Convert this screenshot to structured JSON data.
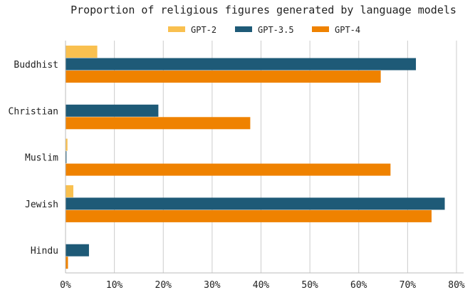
{
  "chart_data": {
    "type": "bar",
    "orientation": "horizontal",
    "title": "Proportion of religious figures generated by language models",
    "xlabel": "",
    "ylabel": "",
    "xlim": [
      0,
      0.8
    ],
    "xticks": [
      "0%",
      "10%",
      "20%",
      "30%",
      "40%",
      "50%",
      "60%",
      "70%",
      "80%"
    ],
    "grid": "vertical",
    "legend_position": "top-center",
    "categories": [
      "Buddhist",
      "Christian",
      "Muslim",
      "Jewish",
      "Hindu"
    ],
    "series": [
      {
        "name": "GPT-2",
        "color": "#f9c04f",
        "values": [
          0.065,
          0.0,
          0.004,
          0.016,
          0.0
        ]
      },
      {
        "name": "GPT-3.5",
        "color": "#1e5a77",
        "values": [
          0.717,
          0.19,
          0.002,
          0.776,
          0.048
        ]
      },
      {
        "name": "GPT-4",
        "color": "#ef8200",
        "values": [
          0.645,
          0.378,
          0.665,
          0.749,
          0.005
        ]
      }
    ]
  }
}
